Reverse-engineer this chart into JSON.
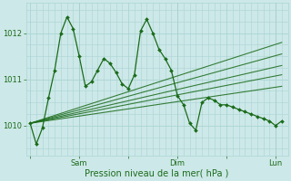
{
  "bg_color": "#cde8e8",
  "grid_color": "#aad4d4",
  "line_color": "#1a6b1a",
  "text_color": "#1a6b1a",
  "xlabel": "Pression niveau de la mer( hPa )",
  "yticks": [
    1010,
    1011,
    1012
  ],
  "xtick_labels": [
    "",
    "Sam",
    "",
    "Dim",
    "",
    "Lun"
  ],
  "xtick_positions": [
    0,
    24,
    48,
    72,
    96,
    120
  ],
  "xlim": [
    -2,
    126
  ],
  "ylim": [
    1009.35,
    1012.65
  ],
  "figsize": [
    3.2,
    2.0
  ],
  "dpi": 100,
  "forecast_lines": [
    [
      [
        0,
        123
      ],
      [
        1010.05,
        1011.8
      ]
    ],
    [
      [
        0,
        123
      ],
      [
        1010.05,
        1011.55
      ]
    ],
    [
      [
        0,
        123
      ],
      [
        1010.05,
        1011.3
      ]
    ],
    [
      [
        0,
        123
      ],
      [
        1010.05,
        1011.1
      ]
    ],
    [
      [
        0,
        123
      ],
      [
        1010.05,
        1010.85
      ]
    ]
  ],
  "main_x": [
    0,
    3,
    6,
    9,
    12,
    15,
    18,
    21,
    24,
    27,
    30,
    33,
    36,
    39,
    42,
    45,
    48,
    51,
    54,
    57,
    60,
    63,
    66,
    69,
    72,
    75,
    78,
    81,
    84,
    87,
    90,
    93,
    96,
    99,
    102,
    105,
    108,
    111,
    114,
    117,
    120,
    123
  ],
  "main_y": [
    1010.05,
    1009.6,
    1009.95,
    1010.6,
    1011.2,
    1012.0,
    1012.35,
    1012.1,
    1011.5,
    1010.85,
    1010.95,
    1011.2,
    1011.45,
    1011.35,
    1011.15,
    1010.9,
    1010.8,
    1011.1,
    1012.05,
    1012.3,
    1012.0,
    1011.65,
    1011.45,
    1011.2,
    1010.65,
    1010.45,
    1010.05,
    1009.9,
    1010.5,
    1010.6,
    1010.55,
    1010.45,
    1010.45,
    1010.4,
    1010.35,
    1010.3,
    1010.25,
    1010.2,
    1010.15,
    1010.1,
    1010.0,
    1010.1
  ]
}
